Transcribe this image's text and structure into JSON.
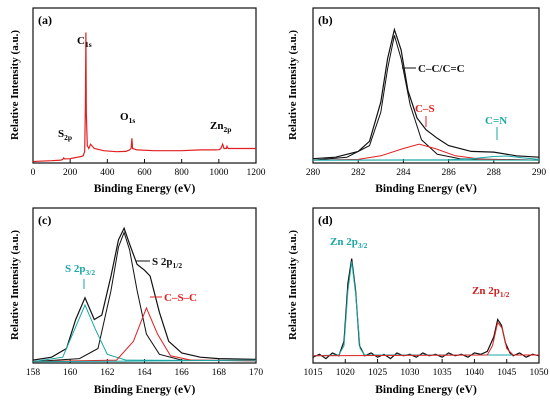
{
  "colors": {
    "black": "#111111",
    "red": "#e02020",
    "cyan": "#1aa6a6",
    "darkred": "#cc2222"
  },
  "chart_data": [
    {
      "panel": "(a)",
      "type": "line",
      "xlabel": "Binding Energy (eV)",
      "ylabel": "Relative Intensity (a.u.)",
      "xlim": [
        0,
        1200
      ],
      "xticks": [
        "0",
        "200",
        "400",
        "600",
        "800",
        "1000",
        "1200"
      ],
      "annotations": [
        {
          "id": "c1s",
          "main": "C",
          "sub": "1s",
          "x": 284.6,
          "y": 0.95
        },
        {
          "id": "o1s",
          "main": "O",
          "sub": "1s",
          "x": 532,
          "y": 0.22
        },
        {
          "id": "zn2p",
          "main": "Zn",
          "sub": "2p",
          "x": 1030,
          "y": 0.13
        },
        {
          "id": "s2p",
          "main": "S",
          "sub": "2p",
          "x": 164,
          "y": 0.07
        }
      ],
      "series": [
        {
          "points": [
            [
              0,
              0.01
            ],
            [
              20,
              0.012
            ],
            [
              100,
              0.016
            ],
            [
              150,
              0.02
            ],
            [
              160,
              0.025
            ],
            [
              165,
              0.035
            ],
            [
              170,
              0.028
            ],
            [
              200,
              0.03
            ],
            [
              220,
              0.035
            ],
            [
              240,
              0.04
            ],
            [
              260,
              0.045
            ],
            [
              270,
              0.05
            ],
            [
              278,
              0.08
            ],
            [
              282,
              0.4
            ],
            [
              284.6,
              0.9
            ],
            [
              287,
              0.35
            ],
            [
              292,
              0.12
            ],
            [
              300,
              0.1
            ],
            [
              310,
              0.13
            ],
            [
              330,
              0.1
            ],
            [
              380,
              0.085
            ],
            [
              450,
              0.078
            ],
            [
              500,
              0.08
            ],
            [
              520,
              0.09
            ],
            [
              528,
              0.1
            ],
            [
              532,
              0.17
            ],
            [
              536,
              0.1
            ],
            [
              560,
              0.09
            ],
            [
              650,
              0.085
            ],
            [
              800,
              0.085
            ],
            [
              900,
              0.09
            ],
            [
              980,
              0.09
            ],
            [
              1000,
              0.092
            ],
            [
              1010,
              0.098
            ],
            [
              1021,
              0.13
            ],
            [
              1028,
              0.1
            ],
            [
              1040,
              0.1
            ],
            [
              1044,
              0.115
            ],
            [
              1050,
              0.1
            ],
            [
              1100,
              0.1
            ],
            [
              1200,
              0.1
            ]
          ]
        }
      ]
    },
    {
      "panel": "(b)",
      "type": "line",
      "xlabel": "Binding Energy (eV)",
      "ylabel": "Relative Intensity (a.u.)",
      "xlim": [
        280,
        290
      ],
      "xticks": [
        "280",
        "282",
        "284",
        "286",
        "288",
        "290"
      ],
      "labels": {
        "cc": "C–C/C=C",
        "cs": "C–S",
        "cn": "C=N"
      },
      "series": [
        {
          "color": "black",
          "role": "raw",
          "points": [
            [
              280,
              0.03
            ],
            [
              281,
              0.04
            ],
            [
              282,
              0.08
            ],
            [
              282.5,
              0.15
            ],
            [
              283,
              0.42
            ],
            [
              283.3,
              0.72
            ],
            [
              283.6,
              0.92
            ],
            [
              283.9,
              0.78
            ],
            [
              284.2,
              0.5
            ],
            [
              284.6,
              0.31
            ],
            [
              285,
              0.23
            ],
            [
              285.5,
              0.17
            ],
            [
              286,
              0.12
            ],
            [
              287,
              0.08
            ],
            [
              288,
              0.075
            ],
            [
              289,
              0.05
            ],
            [
              290,
              0.04
            ]
          ]
        },
        {
          "color": "black",
          "role": "cc-fit",
          "points": [
            [
              280,
              0.02
            ],
            [
              281.5,
              0.04
            ],
            [
              282.5,
              0.12
            ],
            [
              283,
              0.35
            ],
            [
              283.3,
              0.65
            ],
            [
              283.6,
              0.88
            ],
            [
              283.9,
              0.72
            ],
            [
              284.3,
              0.4
            ],
            [
              284.8,
              0.16
            ],
            [
              285.5,
              0.06
            ],
            [
              286.5,
              0.03
            ],
            [
              290,
              0.02
            ]
          ]
        },
        {
          "color": "red",
          "role": "cs-fit",
          "points": [
            [
              280,
              0.02
            ],
            [
              282,
              0.025
            ],
            [
              283,
              0.05
            ],
            [
              284,
              0.1
            ],
            [
              284.7,
              0.13
            ],
            [
              285.4,
              0.1
            ],
            [
              286.3,
              0.05
            ],
            [
              287.5,
              0.025
            ],
            [
              290,
              0.02
            ]
          ]
        },
        {
          "color": "cyan",
          "role": "cn-fit",
          "points": [
            [
              280,
              0.02
            ],
            [
              286,
              0.022
            ],
            [
              287,
              0.03
            ],
            [
              288,
              0.045
            ],
            [
              288.6,
              0.048
            ],
            [
              289.3,
              0.035
            ],
            [
              290,
              0.025
            ]
          ]
        },
        {
          "color": "cyan",
          "role": "baseline",
          "points": [
            [
              280,
              0.02
            ],
            [
              290,
              0.02
            ]
          ]
        }
      ]
    },
    {
      "panel": "(c)",
      "type": "line",
      "xlabel": "Binding Energy (eV)",
      "ylabel": "Relative Intensity (a.u.)",
      "xlim": [
        158,
        170
      ],
      "xticks": [
        "158",
        "160",
        "162",
        "164",
        "166",
        "168",
        "170"
      ],
      "labels": {
        "s32": "S 2p",
        "s32sub": "3/2",
        "s12": "S 2p",
        "s12sub": "1/2",
        "csc": "C–S–C"
      },
      "series": [
        {
          "color": "black",
          "role": "raw",
          "points": [
            [
              158,
              0.02
            ],
            [
              159,
              0.04
            ],
            [
              159.8,
              0.1
            ],
            [
              160.3,
              0.3
            ],
            [
              160.8,
              0.45
            ],
            [
              161.3,
              0.3
            ],
            [
              161.7,
              0.33
            ],
            [
              162.2,
              0.6
            ],
            [
              162.6,
              0.85
            ],
            [
              162.9,
              0.93
            ],
            [
              163.2,
              0.82
            ],
            [
              163.6,
              0.68
            ],
            [
              164,
              0.64
            ],
            [
              164.3,
              0.6
            ],
            [
              164.8,
              0.35
            ],
            [
              165.3,
              0.15
            ],
            [
              166,
              0.07
            ],
            [
              167,
              0.04
            ],
            [
              168,
              0.03
            ],
            [
              170,
              0.025
            ]
          ]
        },
        {
          "color": "black",
          "role": "s12-fit",
          "points": [
            [
              158,
              0.01
            ],
            [
              160.5,
              0.03
            ],
            [
              161.5,
              0.1
            ],
            [
              162.2,
              0.5
            ],
            [
              162.6,
              0.8
            ],
            [
              162.9,
              0.9
            ],
            [
              163.2,
              0.78
            ],
            [
              163.6,
              0.5
            ],
            [
              164.1,
              0.2
            ],
            [
              164.8,
              0.06
            ],
            [
              166,
              0.02
            ],
            [
              170,
              0.015
            ]
          ]
        },
        {
          "color": "cyan",
          "role": "s32-fit",
          "points": [
            [
              158,
              0.01
            ],
            [
              159.6,
              0.04
            ],
            [
              160.2,
              0.22
            ],
            [
              160.8,
              0.4
            ],
            [
              161.4,
              0.22
            ],
            [
              162,
              0.06
            ],
            [
              163,
              0.02
            ],
            [
              170,
              0.015
            ]
          ]
        },
        {
          "color": "red",
          "role": "csc-fit",
          "points": [
            [
              158,
              0.01
            ],
            [
              162.5,
              0.02
            ],
            [
              163.4,
              0.15
            ],
            [
              164.1,
              0.38
            ],
            [
              164.7,
              0.2
            ],
            [
              165.4,
              0.05
            ],
            [
              166.5,
              0.02
            ],
            [
              170,
              0.015
            ]
          ]
        },
        {
          "color": "cyan",
          "role": "baseline",
          "points": [
            [
              158,
              0.008
            ],
            [
              170,
              0.02
            ]
          ]
        }
      ]
    },
    {
      "panel": "(d)",
      "type": "line",
      "xlabel": "Binding Energy (eV)",
      "ylabel": "Relative Intensity (a.u.)",
      "xlim": [
        1015,
        1050
      ],
      "xticks": [
        "1015",
        "1020",
        "1025",
        "1030",
        "1035",
        "1040",
        "1045",
        "1050"
      ],
      "labels": {
        "zn32": "Zn 2p",
        "zn32sub": "3/2",
        "zn12": "Zn 2p",
        "zn12sub": "1/2"
      },
      "series": [
        {
          "color": "black",
          "role": "raw-noise",
          "points": [
            [
              1015,
              0.04
            ],
            [
              1016,
              0.06
            ],
            [
              1017,
              0.03
            ],
            [
              1018,
              0.07
            ],
            [
              1019,
              0.05
            ],
            [
              1019.8,
              0.15
            ],
            [
              1020.4,
              0.55
            ],
            [
              1021,
              0.72
            ],
            [
              1021.6,
              0.5
            ],
            [
              1022.2,
              0.12
            ],
            [
              1023,
              0.05
            ],
            [
              1024,
              0.07
            ],
            [
              1025,
              0.04
            ],
            [
              1026,
              0.06
            ],
            [
              1027,
              0.03
            ],
            [
              1028,
              0.07
            ],
            [
              1029,
              0.05
            ],
            [
              1030,
              0.06
            ],
            [
              1031,
              0.04
            ],
            [
              1032,
              0.07
            ],
            [
              1033,
              0.05
            ],
            [
              1034,
              0.06
            ],
            [
              1035,
              0.04
            ],
            [
              1036,
              0.07
            ],
            [
              1037,
              0.05
            ],
            [
              1038,
              0.06
            ],
            [
              1039,
              0.04
            ],
            [
              1040,
              0.07
            ],
            [
              1041,
              0.06
            ],
            [
              1042,
              0.08
            ],
            [
              1043,
              0.18
            ],
            [
              1043.6,
              0.3
            ],
            [
              1044.2,
              0.26
            ],
            [
              1044.8,
              0.14
            ],
            [
              1045.5,
              0.07
            ],
            [
              1046,
              0.05
            ],
            [
              1047,
              0.07
            ],
            [
              1048,
              0.04
            ],
            [
              1049,
              0.06
            ],
            [
              1050,
              0.05
            ]
          ]
        },
        {
          "color": "cyan",
          "role": "zn32-fit",
          "points": [
            [
              1015,
              0.05
            ],
            [
              1019,
              0.055
            ],
            [
              1019.8,
              0.12
            ],
            [
              1020.4,
              0.5
            ],
            [
              1021,
              0.7
            ],
            [
              1021.6,
              0.48
            ],
            [
              1022.3,
              0.1
            ],
            [
              1023,
              0.055
            ],
            [
              1050,
              0.055
            ]
          ]
        },
        {
          "color": "red",
          "role": "zn12-fit",
          "points": [
            [
              1015,
              0.05
            ],
            [
              1042,
              0.055
            ],
            [
              1042.8,
              0.12
            ],
            [
              1043.6,
              0.28
            ],
            [
              1044.3,
              0.24
            ],
            [
              1045,
              0.1
            ],
            [
              1046,
              0.055
            ],
            [
              1050,
              0.055
            ]
          ]
        }
      ]
    }
  ]
}
